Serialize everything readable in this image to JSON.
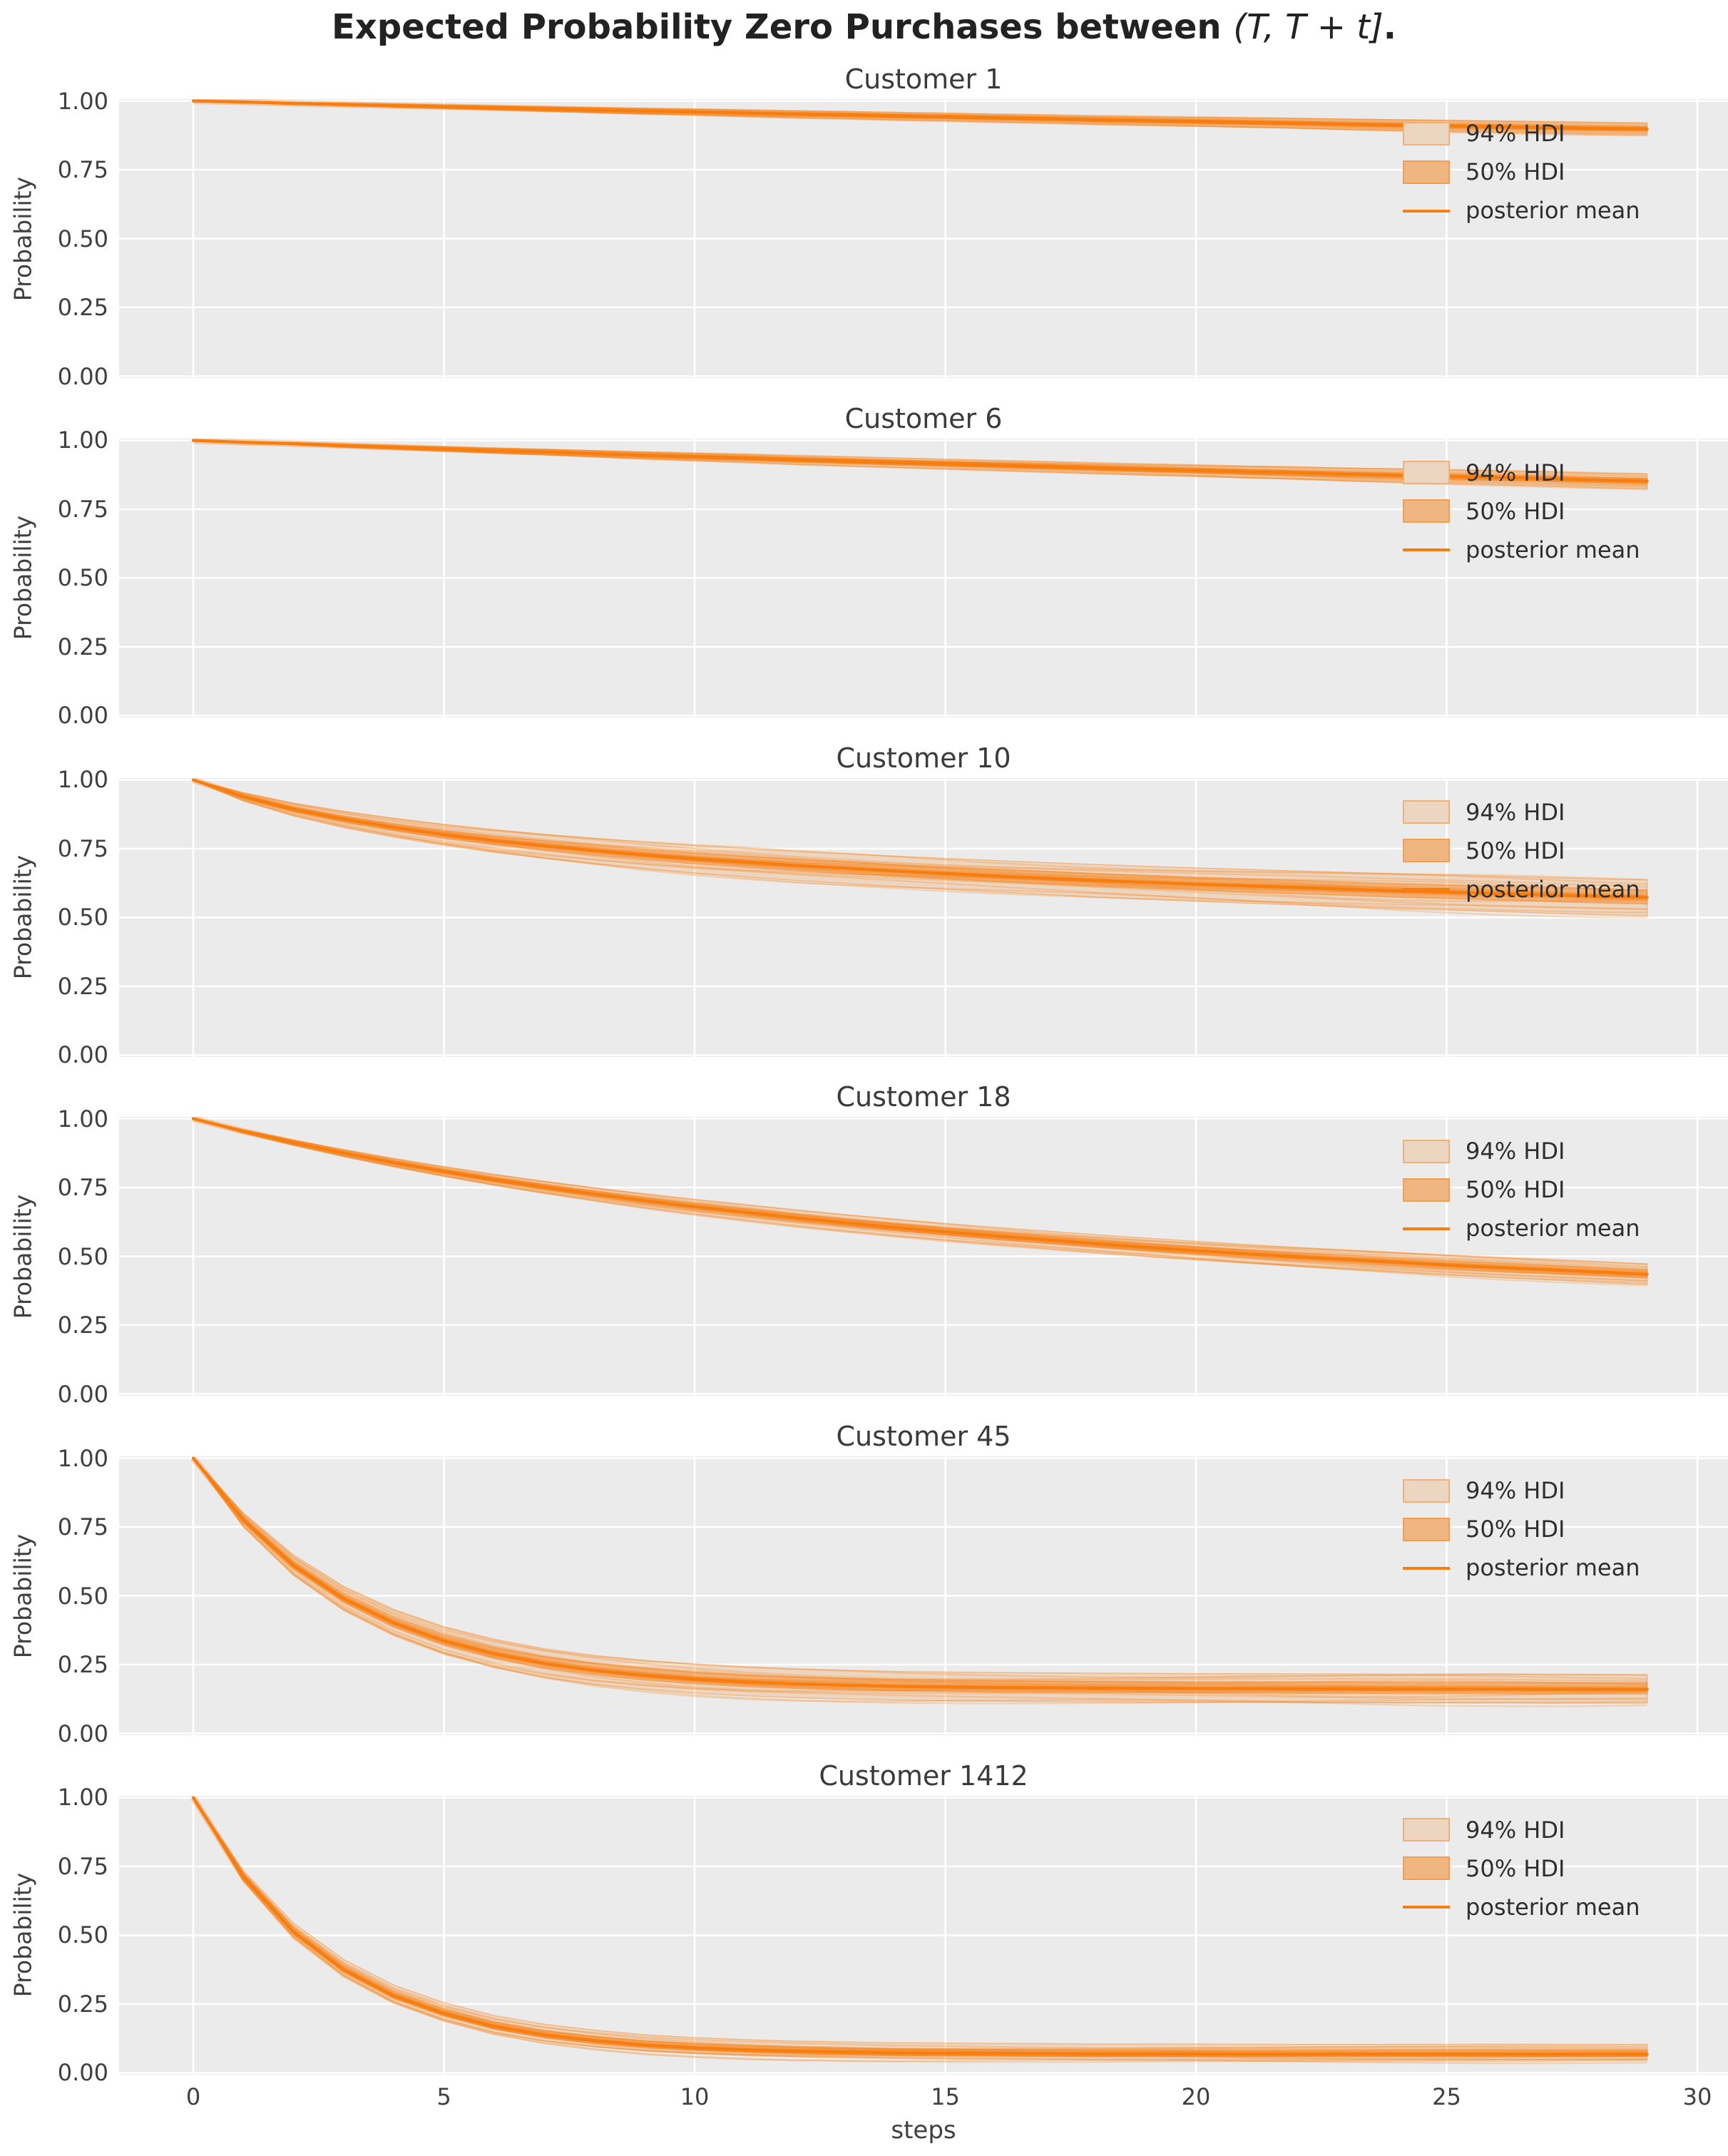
{
  "figure_title": {
    "prefix": "Expected Probability Zero Purchases between ",
    "math": "(T, T + t]",
    "suffix": "."
  },
  "axes": {
    "xlabel": "steps",
    "ylabel": "Probability",
    "x_tick_labels": [
      "0",
      "5",
      "10",
      "15",
      "20",
      "25",
      "30"
    ],
    "y_tick_labels": [
      "1.00",
      "0.75",
      "0.50",
      "0.25",
      "0.00"
    ]
  },
  "legend": {
    "hdi94_label": "94% HDI",
    "hdi50_label": "50% HDI",
    "mean_label": "posterior mean"
  },
  "colors": {
    "panel_background": "#ebebeb",
    "grid": "#ffffff",
    "posterior_mean_line": "#f67d0e",
    "band_base": "#f6821a",
    "hdi94_fill": "rgba(246,130,26,0.20)",
    "hdi50_fill": "rgba(246,130,26,0.48)",
    "band_edge": "rgba(246,130,26,0.45)",
    "draw_line": "rgba(246,127,18,0.25)",
    "legend_hdi94_swatch": "#edd6c1",
    "legend_hdi50_swatch": "#f0b682",
    "text": "#3a3a3a"
  },
  "chart_data": {
    "type": "line",
    "title": "Expected Probability Zero Purchases between (T, T + t].",
    "xlabel": "steps",
    "ylabel": "Probability",
    "xticks": [
      0,
      5,
      10,
      15,
      20,
      25,
      30
    ],
    "yticks": [
      1.0,
      0.75,
      0.5,
      0.25,
      0.0
    ],
    "ylim": [
      0,
      1
    ],
    "xlim": [
      -1.5,
      30.6
    ],
    "grid": true,
    "legend_position": "upper right",
    "x": [
      0,
      1,
      2,
      3,
      4,
      5,
      6,
      7,
      8,
      9,
      10,
      11,
      12,
      13,
      14,
      15,
      16,
      17,
      18,
      19,
      20,
      21,
      22,
      23,
      24,
      25,
      26,
      27,
      28,
      29
    ],
    "panels": [
      {
        "title": "Customer 1",
        "posterior_mean": [
          1.0,
          0.996,
          0.991,
          0.987,
          0.983,
          0.979,
          0.975,
          0.971,
          0.967,
          0.963,
          0.96,
          0.956,
          0.952,
          0.949,
          0.945,
          0.942,
          0.938,
          0.935,
          0.931,
          0.928,
          0.925,
          0.922,
          0.919,
          0.915,
          0.912,
          0.909,
          0.906,
          0.903,
          0.9,
          0.898
        ],
        "hdi_94_at_last_step": [
          0.876,
          0.92
        ],
        "hdi_50_at_last_step": [
          0.89,
          0.906
        ]
      },
      {
        "title": "Customer 6",
        "posterior_mean": [
          1.0,
          0.993,
          0.988,
          0.981,
          0.975,
          0.969,
          0.963,
          0.958,
          0.952,
          0.946,
          0.941,
          0.936,
          0.93,
          0.925,
          0.92,
          0.915,
          0.91,
          0.905,
          0.9,
          0.895,
          0.891,
          0.886,
          0.882,
          0.877,
          0.873,
          0.869,
          0.865,
          0.861,
          0.856,
          0.852
        ],
        "hdi_94_at_last_step": [
          0.824,
          0.878
        ],
        "hdi_50_at_last_step": [
          0.84,
          0.862
        ]
      },
      {
        "title": "Customer 10",
        "posterior_mean": [
          1.0,
          0.939,
          0.893,
          0.857,
          0.827,
          0.801,
          0.779,
          0.76,
          0.743,
          0.727,
          0.713,
          0.701,
          0.689,
          0.679,
          0.669,
          0.66,
          0.651,
          0.643,
          0.635,
          0.628,
          0.621,
          0.615,
          0.609,
          0.603,
          0.597,
          0.592,
          0.587,
          0.582,
          0.577,
          0.573
        ],
        "hdi_94_at_last_step": [
          0.506,
          0.637
        ],
        "hdi_50_at_last_step": [
          0.549,
          0.601
        ]
      },
      {
        "title": "Customer 18",
        "posterior_mean": [
          1.0,
          0.954,
          0.913,
          0.875,
          0.84,
          0.808,
          0.778,
          0.751,
          0.726,
          0.702,
          0.68,
          0.66,
          0.64,
          0.622,
          0.605,
          0.589,
          0.574,
          0.56,
          0.546,
          0.533,
          0.521,
          0.509,
          0.498,
          0.488,
          0.478,
          0.468,
          0.459,
          0.451,
          0.443,
          0.435
        ],
        "hdi_94_at_last_step": [
          0.398,
          0.472
        ],
        "hdi_50_at_last_step": [
          0.42,
          0.452
        ]
      },
      {
        "title": "Customer 45",
        "posterior_mean": [
          1.0,
          0.775,
          0.61,
          0.489,
          0.401,
          0.336,
          0.289,
          0.254,
          0.229,
          0.211,
          0.197,
          0.187,
          0.18,
          0.175,
          0.171,
          0.169,
          0.167,
          0.166,
          0.165,
          0.164,
          0.163,
          0.163,
          0.162,
          0.162,
          0.161,
          0.161,
          0.161,
          0.16,
          0.16,
          0.16
        ],
        "hdi_94_at_last_step": [
          0.11,
          0.214
        ],
        "hdi_50_at_last_step": [
          0.143,
          0.185
        ]
      },
      {
        "title": "Customer 1412",
        "posterior_mean": [
          1.0,
          0.712,
          0.512,
          0.375,
          0.28,
          0.216,
          0.169,
          0.138,
          0.117,
          0.101,
          0.091,
          0.084,
          0.079,
          0.076,
          0.073,
          0.072,
          0.071,
          0.07,
          0.069,
          0.069,
          0.069,
          0.068,
          0.068,
          0.068,
          0.068,
          0.068,
          0.068,
          0.068,
          0.068,
          0.068
        ],
        "hdi_94_at_last_step": [
          0.048,
          0.104
        ],
        "hdi_50_at_last_step": [
          0.059,
          0.083
        ]
      }
    ]
  }
}
